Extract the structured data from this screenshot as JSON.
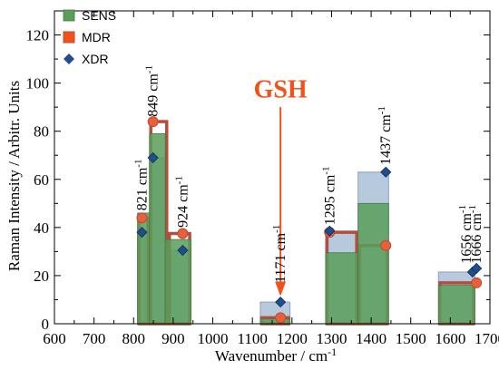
{
  "chart_data": {
    "type": "bar",
    "xlabel": "Wavenumber / cm",
    "xlabel_sup": "-1",
    "ylabel": "Raman Intensity / Arbitr. Units",
    "xlim": [
      600,
      1700
    ],
    "ylim": [
      0,
      130
    ],
    "xticks": [
      600,
      700,
      800,
      900,
      1000,
      1100,
      1200,
      1300,
      1400,
      1500,
      1600,
      1700
    ],
    "yticks": [
      0,
      20,
      40,
      60,
      80,
      100,
      120
    ],
    "legend_position": "top-left",
    "colors": {
      "SENS": "#5a9e5a",
      "MDR": "#f2521a",
      "XDR": "#1f4e8c",
      "XDR_bar": "#b7c9dc",
      "MDR_bar_outline": "#b64c3c",
      "GSH": "#f2521a"
    },
    "series": [
      {
        "name": "SENS",
        "bars": [
          {
            "x0": 810,
            "x1": 840,
            "value": 46
          },
          {
            "x0": 840,
            "x1": 880,
            "value": 79
          },
          {
            "x0": 880,
            "x1": 945,
            "value": 35
          },
          {
            "x0": 1120,
            "x1": 1195,
            "value": 2
          },
          {
            "x0": 1285,
            "x1": 1367,
            "value": 29.5
          },
          {
            "x0": 1367,
            "x1": 1444,
            "value": 50
          },
          {
            "x0": 1570,
            "x1": 1662,
            "value": 16
          }
        ]
      },
      {
        "name": "MDR",
        "bars": [
          {
            "x0": 810,
            "x1": 840,
            "value": 44
          },
          {
            "x0": 840,
            "x1": 887,
            "value": 84
          },
          {
            "x0": 887,
            "x1": 945,
            "value": 37.5
          },
          {
            "x0": 1120,
            "x1": 1195,
            "value": 2.5
          },
          {
            "x0": 1285,
            "x1": 1367,
            "value": 38
          },
          {
            "x0": 1367,
            "x1": 1444,
            "value": 32.5
          },
          {
            "x0": 1570,
            "x1": 1662,
            "value": 17
          }
        ],
        "points": [
          {
            "x": 821,
            "y": 44
          },
          {
            "x": 849,
            "y": 84
          },
          {
            "x": 924,
            "y": 37.5
          },
          {
            "x": 1171,
            "y": 2.5
          },
          {
            "x": 1295,
            "y": 38
          },
          {
            "x": 1437,
            "y": 32.5
          },
          {
            "x": 1666,
            "y": 17
          }
        ]
      },
      {
        "name": "XDR",
        "bars": [
          {
            "x0": 810,
            "x1": 840,
            "value": 38
          },
          {
            "x0": 840,
            "x1": 880,
            "value": 69
          },
          {
            "x0": 880,
            "x1": 945,
            "value": 30.5
          },
          {
            "x0": 1120,
            "x1": 1195,
            "value": 9
          },
          {
            "x0": 1285,
            "x1": 1367,
            "value": 38.5
          },
          {
            "x0": 1367,
            "x1": 1444,
            "value": 63
          },
          {
            "x0": 1570,
            "x1": 1662,
            "value": 21.5
          }
        ],
        "points": [
          {
            "x": 821,
            "y": 38
          },
          {
            "x": 849,
            "y": 69
          },
          {
            "x": 924,
            "y": 30.5
          },
          {
            "x": 1171,
            "y": 9
          },
          {
            "x": 1295,
            "y": 38.5
          },
          {
            "x": 1437,
            "y": 63
          },
          {
            "x": 1656,
            "y": 21.5
          },
          {
            "x": 1666,
            "y": 23
          }
        ]
      }
    ],
    "peak_labels": [
      {
        "text": "821 cm",
        "sup": "-1",
        "x": 821,
        "y": 47
      },
      {
        "text": "849 cm",
        "sup": "-1",
        "x": 849,
        "y": 86
      },
      {
        "text": "924 cm",
        "sup": "-1",
        "x": 924,
        "y": 40
      },
      {
        "text": "1171 cm",
        "sup": "-1",
        "x": 1171,
        "y": 17
      },
      {
        "text": "1295 cm",
        "sup": "-1",
        "x": 1295,
        "y": 41
      },
      {
        "text": "1437 cm",
        "sup": "-1",
        "x": 1437,
        "y": 66
      },
      {
        "text": "1656 cm",
        "sup": "-1",
        "x": 1640,
        "y": 25
      },
      {
        "text": "1666 cm",
        "sup": "-1",
        "x": 1666,
        "y": 25
      }
    ],
    "annotation": {
      "text": "GSH",
      "x": 1171,
      "y": 91,
      "arrow_from": 90,
      "arrow_to": 13
    }
  }
}
